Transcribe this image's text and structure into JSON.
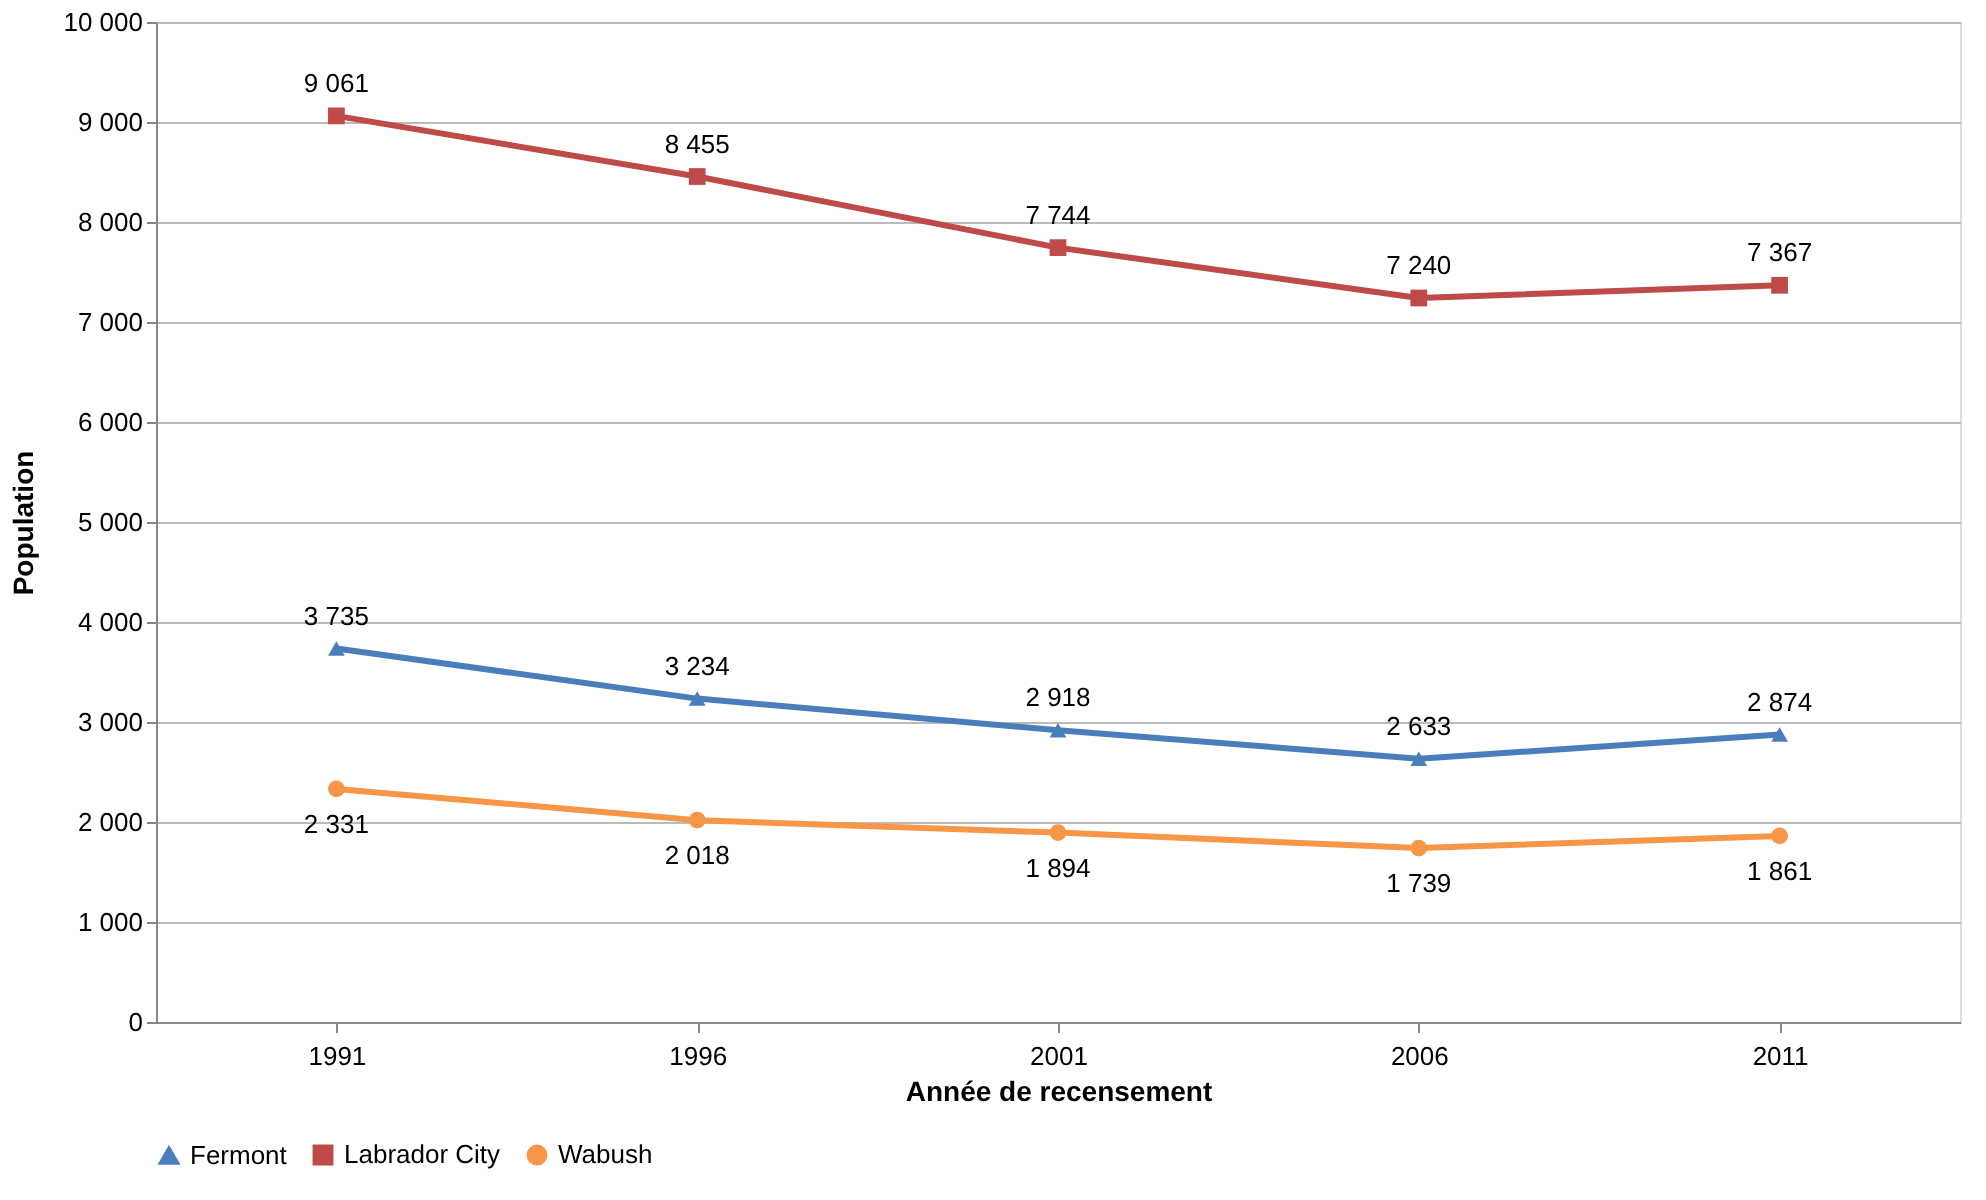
{
  "chart_data": {
    "type": "line",
    "xlabel": "Année de recensement",
    "ylabel": "Population",
    "categories": [
      "1991",
      "1996",
      "2001",
      "2006",
      "2011"
    ],
    "series": [
      {
        "name": "Fermont",
        "color": "#4a7ebb",
        "marker": "triangle",
        "values": [
          3735,
          3234,
          2918,
          2633,
          2874
        ]
      },
      {
        "name": "Labrador City",
        "color": "#be4b48",
        "marker": "square",
        "values": [
          9061,
          8455,
          7744,
          7240,
          7367
        ]
      },
      {
        "name": "Wabush",
        "color": "#f79646",
        "marker": "circle",
        "values": [
          2331,
          2018,
          1894,
          1739,
          1861
        ]
      }
    ],
    "ylim": [
      0,
      10000
    ],
    "yticks": [
      0,
      {
        "value": 1000,
        "label": "1 000"
      },
      {
        "value": 2000,
        "label": "2 000"
      },
      {
        "value": 3000,
        "label": "3 000"
      },
      {
        "value": 4000,
        "label": "4 000"
      },
      {
        "value": 5000,
        "label": "5 000"
      },
      {
        "value": 6000,
        "label": "6 000"
      },
      {
        "value": 7000,
        "label": "7 000"
      },
      {
        "value": 8000,
        "label": "8 000"
      },
      {
        "value": 9000,
        "label": "9 000"
      },
      {
        "value": 10000,
        "label": "10 000"
      }
    ],
    "grid": "y",
    "legend": "bottom",
    "data_labels": true,
    "line_style": "solid"
  }
}
